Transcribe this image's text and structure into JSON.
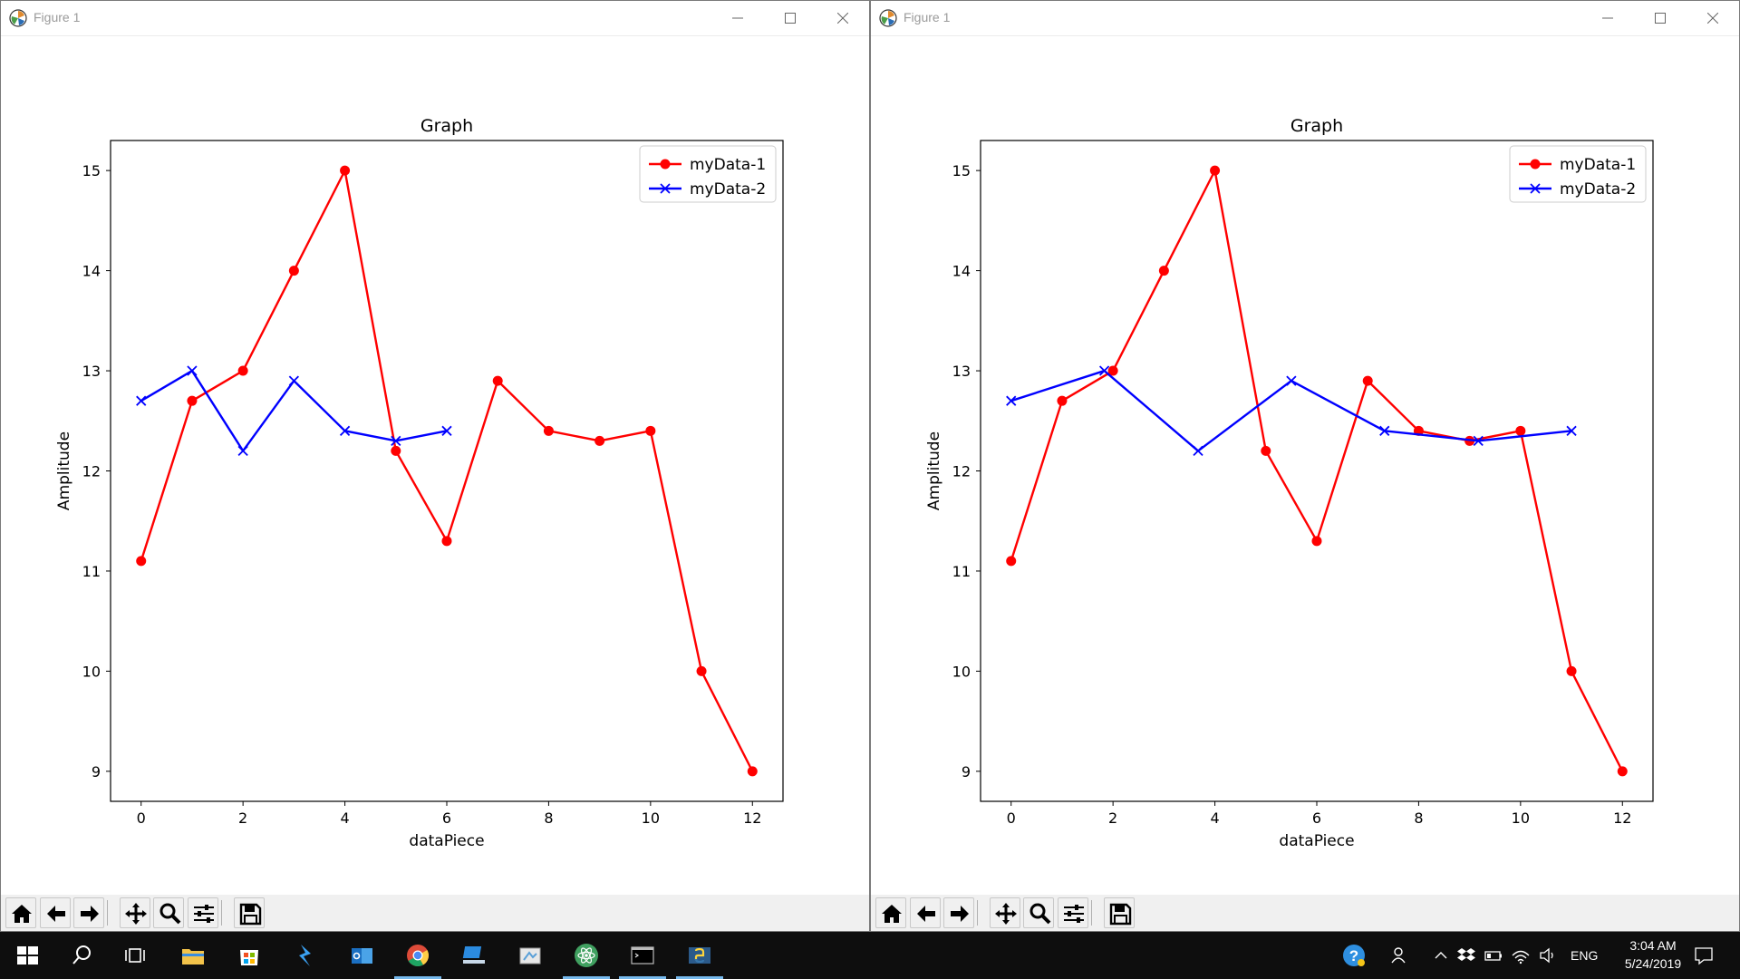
{
  "windows": [
    {
      "title": "Figure 1",
      "chart_data": {
        "type": "line",
        "title": "Graph",
        "xlabel": "dataPiece",
        "ylabel": "Amplitude",
        "xlim": [
          -0.6,
          12.6
        ],
        "ylim": [
          8.7,
          15.3
        ],
        "xticks": [
          0,
          2,
          4,
          6,
          8,
          10,
          12
        ],
        "yticks": [
          9,
          10,
          11,
          12,
          13,
          14,
          15
        ],
        "grid": false,
        "legend_position": "top-right",
        "series": [
          {
            "name": "myData-1",
            "color": "#ff0000",
            "marker": "circle",
            "x": [
              0,
              1,
              2,
              3,
              4,
              5,
              6,
              7,
              8,
              9,
              10,
              11,
              12
            ],
            "y": [
              11.1,
              12.7,
              13,
              14,
              15,
              12.2,
              11.3,
              12.9,
              12.4,
              12.3,
              12.4,
              10,
              9
            ]
          },
          {
            "name": "myData-2",
            "color": "#0000ff",
            "marker": "x",
            "x": [
              0,
              1,
              2,
              3,
              4,
              5,
              6
            ],
            "y": [
              12.7,
              13,
              12.2,
              12.9,
              12.4,
              12.3,
              12.4
            ]
          }
        ]
      }
    },
    {
      "title": "Figure 1",
      "chart_data": {
        "type": "line",
        "title": "Graph",
        "xlabel": "dataPiece",
        "ylabel": "Amplitude",
        "xlim": [
          -0.6,
          12.6
        ],
        "ylim": [
          8.7,
          15.3
        ],
        "xticks": [
          0,
          2,
          4,
          6,
          8,
          10,
          12
        ],
        "yticks": [
          9,
          10,
          11,
          12,
          13,
          14,
          15
        ],
        "grid": false,
        "legend_position": "top-right",
        "series": [
          {
            "name": "myData-1",
            "color": "#ff0000",
            "marker": "circle",
            "x": [
              0,
              1,
              2,
              3,
              4,
              5,
              6,
              7,
              8,
              9,
              10,
              11,
              12
            ],
            "y": [
              11.1,
              12.7,
              13,
              14,
              15,
              12.2,
              11.3,
              12.9,
              12.4,
              12.3,
              12.4,
              10,
              9
            ]
          },
          {
            "name": "myData-2",
            "color": "#0000ff",
            "marker": "x",
            "x": [
              0,
              1.83,
              3.67,
              5.5,
              7.33,
              9.17,
              11
            ],
            "y": [
              12.7,
              13,
              12.2,
              12.9,
              12.4,
              12.3,
              12.4
            ]
          }
        ]
      }
    }
  ],
  "toolbar_icons": [
    "home-icon",
    "back-arrow-icon",
    "forward-arrow-icon",
    "pan-icon",
    "zoom-icon",
    "configure-subplots-icon",
    "save-icon"
  ],
  "taskbar": {
    "apps": [
      "start-icon",
      "search-icon",
      "task-view-icon",
      "file-explorer-icon",
      "store-icon",
      "visual-studio-icon",
      "outlook-icon",
      "chrome-icon",
      "remote-desktop-icon",
      "paint-icon",
      "atom-icon",
      "terminal-icon",
      "python-icon"
    ],
    "language": "ENG",
    "time": "3:04 AM",
    "date": "5/24/2019"
  }
}
